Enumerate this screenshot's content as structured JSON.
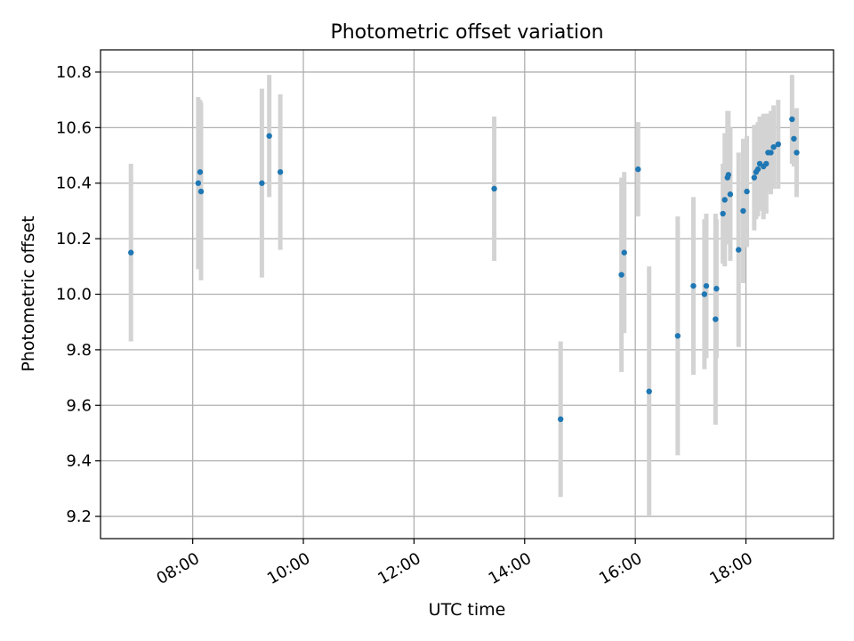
{
  "chart_data": {
    "type": "scatter",
    "title": "Photometric offset variation",
    "xlabel": "UTC time",
    "ylabel": "Photometric offset",
    "x_is_time": true,
    "xlim": [
      "06:20",
      "19:35"
    ],
    "ylim": [
      9.12,
      10.88
    ],
    "x_ticks": [
      "08:00",
      "10:00",
      "12:00",
      "14:00",
      "16:00",
      "18:00"
    ],
    "y_ticks": [
      9.2,
      9.4,
      9.6,
      9.8,
      10.0,
      10.2,
      10.4,
      10.6,
      10.8
    ],
    "grid": true,
    "colors": {
      "points": "#1f77b4",
      "errorbars": "#d3d3d3",
      "grid": "#b0b0b0"
    },
    "series": [
      {
        "points": [
          {
            "x": "06:53",
            "y": 10.15,
            "err": 0.32
          },
          {
            "x": "08:06",
            "y": 10.4,
            "err": 0.31
          },
          {
            "x": "08:08",
            "y": 10.44,
            "err": 0.26
          },
          {
            "x": "08:09",
            "y": 10.37,
            "err": 0.32
          },
          {
            "x": "09:15",
            "y": 10.4,
            "err": 0.34
          },
          {
            "x": "09:23",
            "y": 10.57,
            "err": 0.22
          },
          {
            "x": "09:35",
            "y": 10.44,
            "err": 0.28
          },
          {
            "x": "13:27",
            "y": 10.38,
            "err": 0.26
          },
          {
            "x": "14:39",
            "y": 9.55,
            "err": 0.28
          },
          {
            "x": "15:45",
            "y": 10.07,
            "err": 0.35
          },
          {
            "x": "15:48",
            "y": 10.15,
            "err": 0.29
          },
          {
            "x": "16:03",
            "y": 10.45,
            "err": 0.17
          },
          {
            "x": "16:15",
            "y": 9.65,
            "err": 0.45
          },
          {
            "x": "16:46",
            "y": 9.85,
            "err": 0.43
          },
          {
            "x": "17:03",
            "y": 10.03,
            "err": 0.32
          },
          {
            "x": "17:15",
            "y": 10.0,
            "err": 0.27
          },
          {
            "x": "17:17",
            "y": 10.03,
            "err": 0.26
          },
          {
            "x": "17:27",
            "y": 9.91,
            "err": 0.38
          },
          {
            "x": "17:28",
            "y": 10.02,
            "err": 0.25
          },
          {
            "x": "17:35",
            "y": 10.29,
            "err": 0.18
          },
          {
            "x": "17:37",
            "y": 10.34,
            "err": 0.24
          },
          {
            "x": "17:40",
            "y": 10.42,
            "err": 0.24
          },
          {
            "x": "17:41",
            "y": 10.43,
            "err": 0.23
          },
          {
            "x": "17:43",
            "y": 10.36,
            "err": 0.24
          },
          {
            "x": "17:52",
            "y": 10.16,
            "err": 0.35
          },
          {
            "x": "17:57",
            "y": 10.3,
            "err": 0.26
          },
          {
            "x": "18:01",
            "y": 10.37,
            "err": 0.2
          },
          {
            "x": "18:09",
            "y": 10.42,
            "err": 0.19
          },
          {
            "x": "18:11",
            "y": 10.44,
            "err": 0.17
          },
          {
            "x": "18:13",
            "y": 10.45,
            "err": 0.17
          },
          {
            "x": "18:15",
            "y": 10.47,
            "err": 0.17
          },
          {
            "x": "18:19",
            "y": 10.46,
            "err": 0.19
          },
          {
            "x": "18:22",
            "y": 10.47,
            "err": 0.18
          },
          {
            "x": "18:24",
            "y": 10.51,
            "err": 0.14
          },
          {
            "x": "18:27",
            "y": 10.51,
            "err": 0.15
          },
          {
            "x": "18:30",
            "y": 10.53,
            "err": 0.15
          },
          {
            "x": "18:35",
            "y": 10.54,
            "err": 0.16
          },
          {
            "x": "18:50",
            "y": 10.63,
            "err": 0.16
          },
          {
            "x": "18:52",
            "y": 10.56,
            "err": 0.1
          },
          {
            "x": "18:55",
            "y": 10.51,
            "err": 0.16
          }
        ]
      }
    ]
  }
}
